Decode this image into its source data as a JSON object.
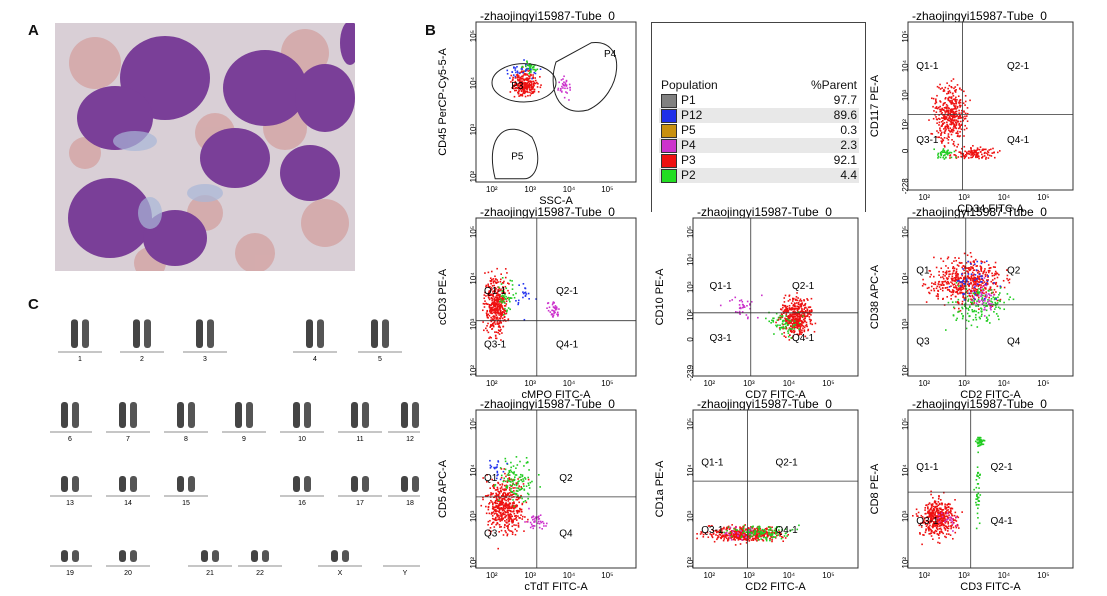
{
  "panels": {
    "a": "A",
    "b": "B",
    "c": "C"
  },
  "colors": {
    "red": "#ee1111",
    "green": "#22cc22",
    "blue": "#2233ee",
    "magenta": "#cc33cc",
    "gray": "#888888",
    "orange": "#cc9911"
  },
  "legend": {
    "header_population": "Population",
    "header_parent": "%Parent",
    "rows": [
      {
        "name": "P1",
        "pct": "97.7",
        "color": "#808080"
      },
      {
        "name": "P12",
        "pct": "89.6",
        "color": "#1f2fe8"
      },
      {
        "name": "P5",
        "pct": "0.3",
        "color": "#c8900f"
      },
      {
        "name": "P4",
        "pct": "2.3",
        "color": "#cc33cc"
      },
      {
        "name": "P3",
        "pct": "92.1",
        "color": "#ee1111"
      },
      {
        "name": "P2",
        "pct": "4.4",
        "color": "#22dd22"
      }
    ]
  },
  "plots": [
    {
      "id": "p1",
      "title": "-zhaojingyi15987-Tube_0",
      "xlabel": "SSC-A",
      "ylabel": "CD45 PerCP-Cy5-5-A",
      "xticks": [
        "10²",
        "10³",
        "10⁴",
        "10⁵"
      ],
      "yticks": [
        "10⁵",
        "10⁴",
        "10³",
        "10²"
      ],
      "gates": [
        "P4",
        "P3",
        "P5"
      ]
    },
    {
      "id": "p2",
      "title": "-zhaojingyi15987-Tube_0",
      "xlabel": "CD34 FITC-A",
      "ylabel": "CD117 PE-A",
      "xticks": [
        "10²",
        "10³",
        "10⁴",
        "10⁵"
      ],
      "yticks": [
        "10⁵",
        "10⁴",
        "10³",
        "10²",
        "0",
        "-228"
      ],
      "quads": [
        "Q1-1",
        "Q2-1",
        "Q3-1",
        "Q4-1"
      ]
    },
    {
      "id": "p3",
      "title": "-zhaojingyi15987-Tube_0",
      "xlabel": "cMPO FITC-A",
      "ylabel": "cCD3 PE-A",
      "xticks": [
        "10²",
        "10³",
        "10⁴",
        "10⁵"
      ],
      "yticks": [
        "10⁵",
        "10⁴",
        "10³",
        "10²"
      ],
      "quads": [
        "Q1-1",
        "Q2-1",
        "Q3-1",
        "Q4-1"
      ]
    },
    {
      "id": "p4",
      "title": "-zhaojingyi15987-Tube_0",
      "xlabel": "CD7 FITC-A",
      "ylabel": "CD10 PE-A",
      "xticks": [
        "10²",
        "10³",
        "10⁴",
        "10⁵"
      ],
      "yticks": [
        "10⁵",
        "10⁴",
        "10³",
        "10²",
        "0",
        "-239"
      ],
      "quads": [
        "Q1-1",
        "Q2-1",
        "Q3-1",
        "Q4-1"
      ]
    },
    {
      "id": "p5",
      "title": "-zhaojingyi15987-Tube_0",
      "xlabel": "CD2 FITC-A",
      "ylabel": "CD38 APC-A",
      "xticks": [
        "10²",
        "10³",
        "10⁴",
        "10⁵"
      ],
      "yticks": [
        "10⁵",
        "10⁴",
        "10³",
        "10²"
      ],
      "quads": [
        "Q1",
        "Q2",
        "Q3",
        "Q4"
      ]
    },
    {
      "id": "p6",
      "title": "-zhaojingyi15987-Tube_0",
      "xlabel": "cTdT FITC-A",
      "ylabel": "CD5 APC-A",
      "xticks": [
        "10²",
        "10³",
        "10⁴",
        "10⁵"
      ],
      "yticks": [
        "10⁵",
        "10⁴",
        "10³",
        "10²"
      ],
      "quads": [
        "Q1",
        "Q2",
        "Q3",
        "Q4"
      ]
    },
    {
      "id": "p7",
      "title": "-zhaojingyi15987-Tube_0",
      "xlabel": "CD2 FITC-A",
      "ylabel": "CD1a PE-A",
      "xticks": [
        "10²",
        "10³",
        "10⁴",
        "10⁵"
      ],
      "yticks": [
        "10⁵",
        "10⁴",
        "10³",
        "10²"
      ],
      "quads": [
        "Q1-1",
        "Q2-1",
        "Q3-1",
        "Q4-1"
      ]
    },
    {
      "id": "p8",
      "title": "-zhaojingyi15987-Tube_0",
      "xlabel": "CD3 FITC-A",
      "ylabel": "CD8 PE-A",
      "xticks": [
        "10²",
        "10³",
        "10⁴",
        "10⁵"
      ],
      "yticks": [
        "10⁵",
        "10⁴",
        "10³",
        "10²"
      ],
      "quads": [
        "Q1-1",
        "Q2-1",
        "Q3-1",
        "Q4-1"
      ]
    }
  ],
  "karyotype": {
    "row1": [
      "1",
      "2",
      "3",
      "4",
      "5"
    ],
    "row2": [
      "6",
      "7",
      "8",
      "9",
      "10",
      "11",
      "12"
    ],
    "row3": [
      "13",
      "14",
      "15",
      "16",
      "17",
      "18"
    ],
    "row4": [
      "19",
      "20",
      "21",
      "22",
      "X",
      "Y"
    ]
  }
}
